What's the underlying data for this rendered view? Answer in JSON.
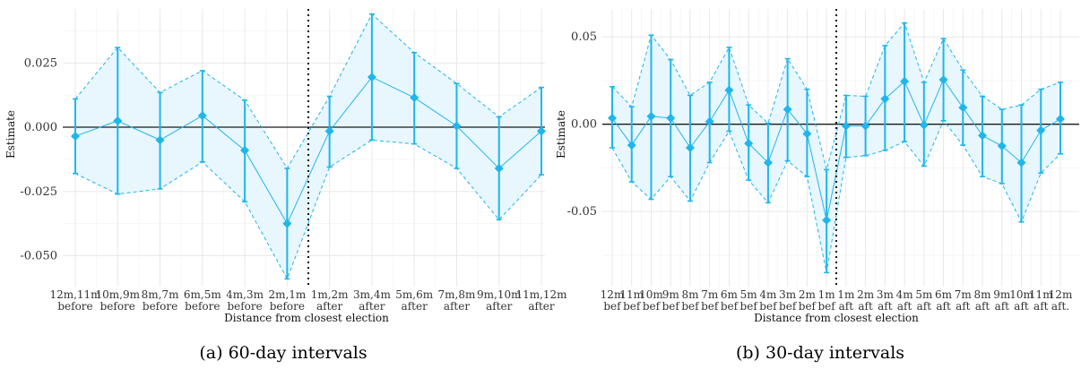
{
  "chart_data": [
    {
      "type": "line",
      "caption": "(a) 60-day intervals",
      "xlabel": "Distance from closest election",
      "ylabel": "Estimate",
      "ylim": [
        -0.062,
        0.046
      ],
      "yticks": [
        -0.05,
        -0.025,
        0.0,
        0.025
      ],
      "ytick_labels": [
        "-0.050",
        "-0.025",
        "0.000",
        "0.025"
      ],
      "categories": [
        {
          "l1": "12m,11m",
          "l2": "before"
        },
        {
          "l1": "10m,9m",
          "l2": "before"
        },
        {
          "l1": "8m,7m",
          "l2": "before"
        },
        {
          "l1": "6m,5m",
          "l2": "before"
        },
        {
          "l1": "4m,3m",
          "l2": "before"
        },
        {
          "l1": "2m,1m",
          "l2": "before"
        },
        {
          "l1": "1m,2m",
          "l2": "after"
        },
        {
          "l1": "3m,4m",
          "l2": "after"
        },
        {
          "l1": "5m,6m",
          "l2": "after"
        },
        {
          "l1": "7m,8m",
          "l2": "after"
        },
        {
          "l1": "9m,10m",
          "l2": "after"
        },
        {
          "l1": "11m,12m",
          "l2": "after"
        }
      ],
      "estimate": [
        -0.0035,
        0.0025,
        -0.005,
        0.0045,
        -0.009,
        -0.0375,
        -0.0015,
        0.0195,
        0.0115,
        0.0005,
        -0.016,
        -0.0015
      ],
      "ci_low": [
        -0.018,
        -0.026,
        -0.024,
        -0.0135,
        -0.029,
        -0.059,
        -0.0155,
        -0.005,
        -0.0065,
        -0.016,
        -0.036,
        -0.0185
      ],
      "ci_high": [
        0.011,
        0.031,
        0.0135,
        0.022,
        0.0105,
        -0.016,
        0.012,
        0.044,
        0.029,
        0.017,
        0.004,
        0.0155
      ],
      "vline_between": [
        5,
        6
      ],
      "grid": true
    },
    {
      "type": "line",
      "caption": "(b) 30-day intervals",
      "xlabel": "Distance from closest election",
      "ylabel": "Estimate",
      "ylim": [
        -0.093,
        0.066
      ],
      "yticks": [
        -0.05,
        0.0,
        0.05
      ],
      "ytick_labels": [
        "-0.05",
        "0.00",
        "0.05"
      ],
      "categories": [
        {
          "l1": "12m",
          "l2": "bef"
        },
        {
          "l1": "11m",
          "l2": "bef"
        },
        {
          "l1": "10m",
          "l2": "bef"
        },
        {
          "l1": "9m",
          "l2": "bef"
        },
        {
          "l1": "8m",
          "l2": "bef"
        },
        {
          "l1": "7m",
          "l2": "bef"
        },
        {
          "l1": "6m",
          "l2": "bef"
        },
        {
          "l1": "5m",
          "l2": "bef"
        },
        {
          "l1": "4m",
          "l2": "bef"
        },
        {
          "l1": "3m",
          "l2": "bef"
        },
        {
          "l1": "2m",
          "l2": "bef"
        },
        {
          "l1": "1m",
          "l2": "bef"
        },
        {
          "l1": "1m",
          "l2": "aft"
        },
        {
          "l1": "2m",
          "l2": "aft"
        },
        {
          "l1": "3m",
          "l2": "aft"
        },
        {
          "l1": "4m",
          "l2": "aft"
        },
        {
          "l1": "5m",
          "l2": "aft"
        },
        {
          "l1": "6m",
          "l2": "aft"
        },
        {
          "l1": "7m",
          "l2": "aft"
        },
        {
          "l1": "8m",
          "l2": "aft"
        },
        {
          "l1": "9m",
          "l2": "aft"
        },
        {
          "l1": "10m",
          "l2": "aft"
        },
        {
          "l1": "11m",
          "l2": "aft"
        },
        {
          "l1": "12m",
          "l2": "aft."
        }
      ],
      "estimate": [
        0.0035,
        -0.012,
        0.0045,
        0.0035,
        -0.0135,
        0.0015,
        0.0195,
        -0.011,
        -0.022,
        0.0085,
        -0.0055,
        -0.055,
        -0.001,
        -0.001,
        0.0145,
        0.0245,
        -0.0005,
        0.0255,
        0.0095,
        -0.0065,
        -0.0125,
        -0.022,
        -0.0035,
        0.003
      ],
      "ci_low": [
        -0.0135,
        -0.033,
        -0.043,
        -0.03,
        -0.044,
        -0.022,
        -0.004,
        -0.032,
        -0.045,
        -0.021,
        -0.03,
        -0.085,
        -0.019,
        -0.018,
        -0.015,
        -0.01,
        -0.024,
        0.002,
        -0.012,
        -0.03,
        -0.034,
        -0.056,
        -0.028,
        -0.017
      ],
      "ci_high": [
        0.0215,
        0.01,
        0.051,
        0.037,
        0.0165,
        0.024,
        0.044,
        0.011,
        0.0005,
        0.0375,
        0.02,
        -0.026,
        0.0165,
        0.016,
        0.045,
        0.058,
        0.024,
        0.049,
        0.031,
        0.016,
        0.0085,
        0.011,
        0.02,
        0.024
      ],
      "vline_between": [
        11,
        12
      ],
      "grid": true
    }
  ]
}
